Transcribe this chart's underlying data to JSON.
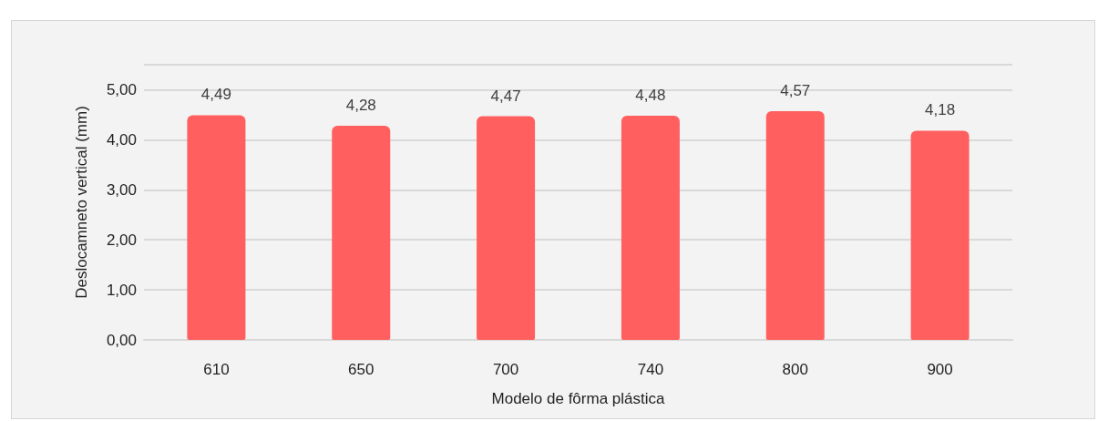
{
  "chart_data": {
    "type": "bar",
    "xlabel": "Modelo de fôrma plástica",
    "ylabel": "Deslocamneto vertical (mm)",
    "categories": [
      "610",
      "650",
      "700",
      "740",
      "800",
      "900"
    ],
    "values": [
      4.49,
      4.28,
      4.47,
      4.48,
      4.57,
      4.18
    ],
    "value_labels": [
      "4,49",
      "4,28",
      "4,47",
      "4,48",
      "4,57",
      "4,18"
    ],
    "color": "#ff5f5f",
    "ylim": [
      0,
      5.5
    ],
    "yticks": [
      {
        "value": 0,
        "label": "0,00"
      },
      {
        "value": 1,
        "label": "1,00"
      },
      {
        "value": 2,
        "label": "2,00"
      },
      {
        "value": 3,
        "label": "3,00"
      },
      {
        "value": 4,
        "label": "4,00"
      },
      {
        "value": 5,
        "label": "5,00"
      },
      {
        "value": 5.5,
        "label": null
      }
    ],
    "grid": "y"
  }
}
